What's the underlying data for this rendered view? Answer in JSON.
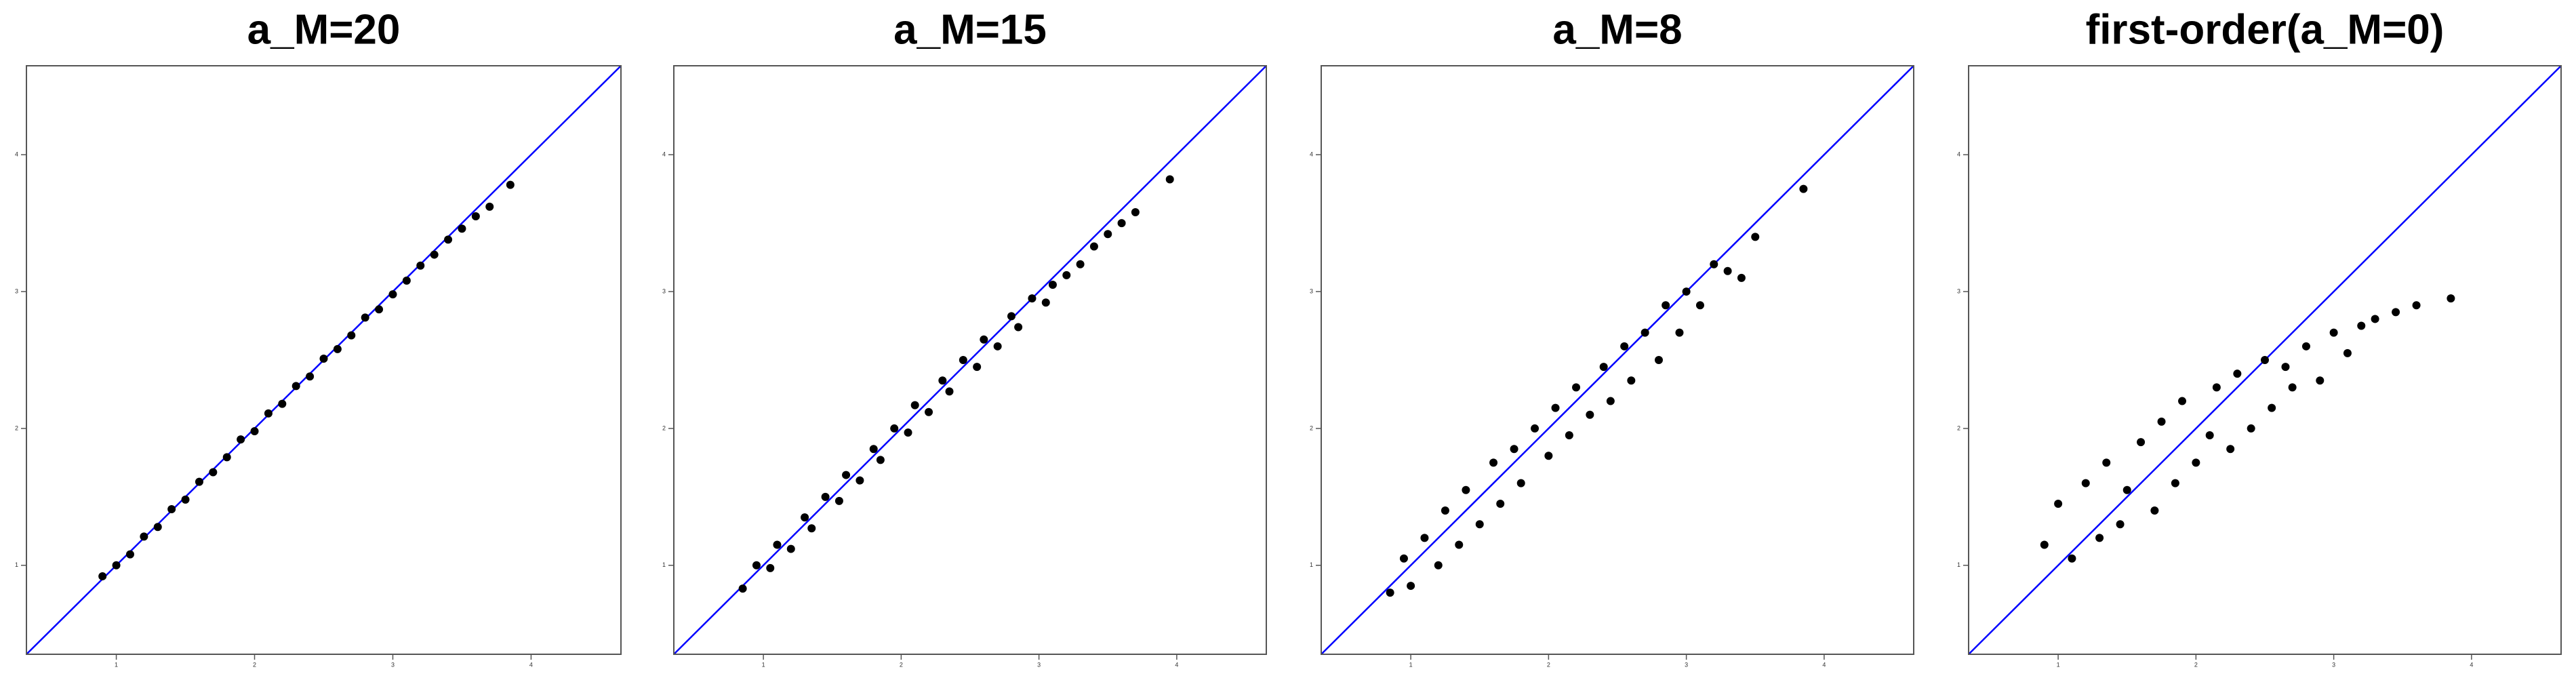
{
  "chart_data": [
    {
      "type": "scatter",
      "title": "a_M=20",
      "color": "#000000",
      "diagonal": true,
      "diagonal_color": "#0000ff",
      "xlim": [
        0.35,
        4.65
      ],
      "ylim": [
        0.35,
        4.65
      ],
      "xticks": [
        1,
        2,
        3,
        4
      ],
      "yticks": [
        1,
        2,
        3,
        4
      ],
      "x": [
        0.9,
        1.0,
        1.1,
        1.2,
        1.3,
        1.4,
        1.5,
        1.6,
        1.7,
        1.8,
        1.9,
        2.0,
        2.1,
        2.2,
        2.3,
        2.4,
        2.5,
        2.6,
        2.7,
        2.8,
        2.9,
        3.0,
        3.1,
        3.2,
        3.3,
        3.4,
        3.5,
        3.6,
        3.7,
        3.85
      ],
      "values": [
        0.92,
        1.0,
        1.08,
        1.21,
        1.28,
        1.41,
        1.48,
        1.61,
        1.68,
        1.79,
        1.92,
        1.98,
        2.11,
        2.18,
        2.31,
        2.38,
        2.51,
        2.58,
        2.68,
        2.81,
        2.87,
        2.98,
        3.08,
        3.19,
        3.27,
        3.38,
        3.46,
        3.55,
        3.62,
        3.78
      ]
    },
    {
      "type": "scatter",
      "title": "a_M=15",
      "color": "#000000",
      "diagonal": true,
      "diagonal_color": "#0000ff",
      "xlim": [
        0.35,
        4.65
      ],
      "ylim": [
        0.35,
        4.65
      ],
      "xticks": [
        1,
        2,
        3,
        4
      ],
      "yticks": [
        1,
        2,
        3,
        4
      ],
      "x": [
        0.85,
        0.95,
        1.05,
        1.1,
        1.2,
        1.3,
        1.35,
        1.45,
        1.55,
        1.6,
        1.7,
        1.8,
        1.85,
        1.95,
        2.05,
        2.1,
        2.2,
        2.3,
        2.35,
        2.45,
        2.55,
        2.6,
        2.7,
        2.8,
        2.85,
        2.95,
        3.05,
        3.1,
        3.2,
        3.3,
        3.4,
        3.5,
        3.6,
        3.7,
        3.95
      ],
      "values": [
        0.83,
        1.0,
        0.98,
        1.15,
        1.12,
        1.35,
        1.27,
        1.5,
        1.47,
        1.66,
        1.62,
        1.85,
        1.77,
        2.0,
        1.97,
        2.17,
        2.12,
        2.35,
        2.27,
        2.5,
        2.45,
        2.65,
        2.6,
        2.82,
        2.74,
        2.95,
        2.92,
        3.05,
        3.12,
        3.2,
        3.33,
        3.42,
        3.5,
        3.58,
        3.82
      ]
    },
    {
      "type": "scatter",
      "title": "a_M=8",
      "color": "#000000",
      "diagonal": true,
      "diagonal_color": "#0000ff",
      "xlim": [
        0.35,
        4.65
      ],
      "ylim": [
        0.35,
        4.65
      ],
      "xticks": [
        1,
        2,
        3,
        4
      ],
      "yticks": [
        1,
        2,
        3,
        4
      ],
      "x": [
        0.85,
        0.95,
        1.0,
        1.1,
        1.2,
        1.25,
        1.35,
        1.4,
        1.5,
        1.6,
        1.65,
        1.75,
        1.8,
        1.9,
        2.0,
        2.05,
        2.15,
        2.2,
        2.3,
        2.4,
        2.45,
        2.55,
        2.6,
        2.7,
        2.8,
        2.85,
        2.95,
        3.0,
        3.1,
        3.2,
        3.3,
        3.4,
        3.5,
        3.85
      ],
      "values": [
        0.8,
        1.05,
        0.85,
        1.2,
        1.0,
        1.4,
        1.15,
        1.55,
        1.3,
        1.75,
        1.45,
        1.85,
        1.6,
        2.0,
        1.8,
        2.15,
        1.95,
        2.3,
        2.1,
        2.45,
        2.2,
        2.6,
        2.35,
        2.7,
        2.5,
        2.9,
        2.7,
        3.0,
        2.9,
        3.2,
        3.15,
        3.1,
        3.4,
        3.75
      ]
    },
    {
      "type": "scatter",
      "title": "first-order(a_M=0)",
      "color": "#000000",
      "diagonal": true,
      "diagonal_color": "#0000ff",
      "xlim": [
        0.35,
        4.65
      ],
      "ylim": [
        0.35,
        4.65
      ],
      "xticks": [
        1,
        2,
        3,
        4
      ],
      "yticks": [
        1,
        2,
        3,
        4
      ],
      "x": [
        0.9,
        1.0,
        1.1,
        1.2,
        1.3,
        1.35,
        1.45,
        1.5,
        1.6,
        1.7,
        1.75,
        1.85,
        1.9,
        2.0,
        2.1,
        2.15,
        2.25,
        2.3,
        2.4,
        2.5,
        2.55,
        2.65,
        2.7,
        2.8,
        2.9,
        3.0,
        3.1,
        3.2,
        3.3,
        3.45,
        3.6,
        3.85
      ],
      "values": [
        1.15,
        1.45,
        1.05,
        1.6,
        1.2,
        1.75,
        1.3,
        1.55,
        1.9,
        1.4,
        2.05,
        1.6,
        2.2,
        1.75,
        1.95,
        2.3,
        1.85,
        2.4,
        2.0,
        2.5,
        2.15,
        2.45,
        2.3,
        2.6,
        2.35,
        2.7,
        2.55,
        2.75,
        2.8,
        2.85,
        2.9,
        2.95
      ]
    }
  ]
}
